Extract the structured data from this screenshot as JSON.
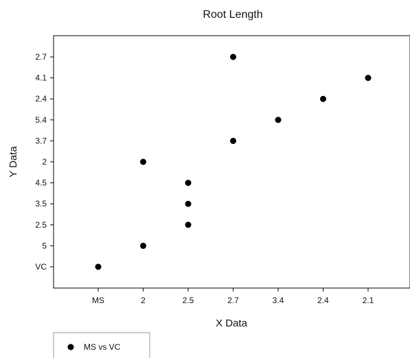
{
  "chart_data": {
    "type": "scatter",
    "title": "Root Length",
    "xlabel": "X Data",
    "ylabel": "Y Data",
    "x_categories": [
      "MS",
      "2",
      "2.5",
      "2.7",
      "3.4",
      "2.4",
      "2.1"
    ],
    "y_categories": [
      "VC",
      "5",
      "2.5",
      "3.5",
      "4.5",
      "2",
      "3.7",
      "5.4",
      "2.4",
      "4.1",
      "2.7"
    ],
    "series": [
      {
        "name": "MS vs VC",
        "color": "#000000",
        "marker": "circle",
        "points": [
          {
            "x": "MS",
            "y": "VC"
          },
          {
            "x": "2",
            "y": "5"
          },
          {
            "x": "2",
            "y": "2"
          },
          {
            "x": "2.5",
            "y": "2.5"
          },
          {
            "x": "2.5",
            "y": "3.5"
          },
          {
            "x": "2.5",
            "y": "4.5"
          },
          {
            "x": "2.7",
            "y": "3.7"
          },
          {
            "x": "2.7",
            "y": "2.7"
          },
          {
            "x": "3.4",
            "y": "5.4"
          },
          {
            "x": "2.4",
            "y": "2.4"
          },
          {
            "x": "2.1",
            "y": "4.1"
          }
        ]
      }
    ],
    "grid": false,
    "legend_position": "bottom-left"
  }
}
